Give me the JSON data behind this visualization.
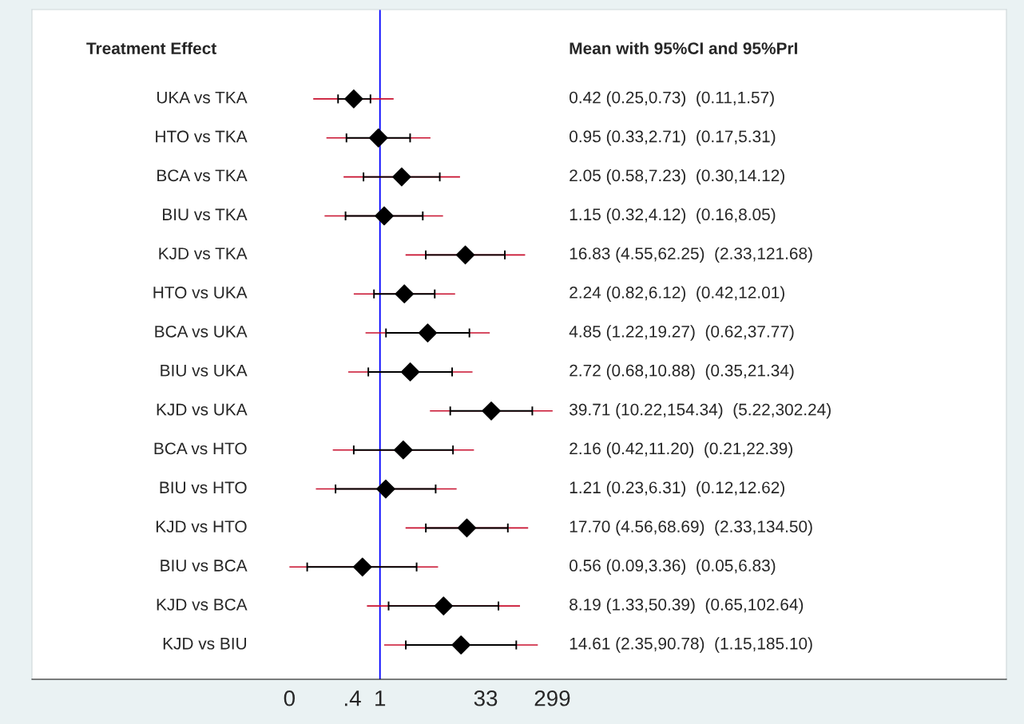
{
  "chart_data": {
    "type": "scatter",
    "orientation": "horizontal",
    "log": "x",
    "categories": [
      "UKA vs TKA",
      "HTO vs TKA",
      "BCA vs TKA",
      "BIU vs TKA",
      "KJD vs TKA",
      "HTO vs UKA",
      "BCA vs UKA",
      "BIU vs UKA",
      "KJD vs UKA",
      "BCA vs HTO",
      "BIU vs HTO",
      "KJD vs HTO",
      "BIU vs BCA",
      "KJD vs BCA",
      "KJD vs BIU"
    ],
    "series": [
      {
        "color": "#000000",
        "marker": "diamond",
        "values": [
          0.42,
          0.95,
          2.05,
          1.15,
          16.83,
          2.24,
          4.85,
          2.72,
          39.71,
          2.16,
          1.21,
          17.7,
          0.56,
          8.19,
          14.61
        ],
        "errors": [
          [
            0.25,
            0.73
          ],
          [
            0.33,
            2.71
          ],
          [
            0.58,
            7.23
          ],
          [
            0.32,
            4.12
          ],
          [
            4.55,
            62.25
          ],
          [
            0.82,
            6.12
          ],
          [
            1.22,
            19.27
          ],
          [
            0.68,
            10.88
          ],
          [
            10.22,
            154.34
          ],
          [
            0.42,
            11.2
          ],
          [
            0.23,
            6.31
          ],
          [
            4.56,
            68.69
          ],
          [
            0.09,
            3.36
          ],
          [
            1.33,
            50.39
          ],
          [
            2.35,
            90.78
          ]
        ],
        "lower": [
          0.11,
          0.17,
          0.3,
          0.16,
          2.33,
          0.42,
          0.62,
          0.35,
          5.22,
          0.21,
          0.12,
          2.33,
          0.05,
          0.65,
          1.15
        ],
        "upper": [
          1.57,
          5.31,
          14.12,
          8.05,
          121.68,
          12.01,
          37.77,
          21.34,
          302.24,
          22.39,
          12.62,
          134.5,
          6.83,
          102.64,
          185.1
        ]
      }
    ],
    "xlim": [
      1e-05,
      1000000000
    ],
    "xticks": [
      {
        "value": 0.05,
        "label": "0"
      },
      {
        "value": 0.4,
        "label": ".4"
      },
      1,
      33,
      299
    ],
    "ref_lines": [
      {
        "axis": "x",
        "value": 1,
        "color": "#0000ff"
      }
    ],
    "annotations": [
      "Treatment Effect",
      "Mean with 95%CI and 95%PrI",
      "0.42 (0.25,0.73)  (0.11,1.57)",
      "0.95 (0.33,2.71)  (0.17,5.31)",
      "2.05 (0.58,7.23)  (0.30,14.12)",
      "1.15 (0.32,4.12)  (0.16,8.05)",
      "16.83 (4.55,62.25)  (2.33,121.68)",
      "2.24 (0.82,6.12)  (0.42,12.01)",
      "4.85 (1.22,19.27)  (0.62,37.77)",
      "2.72 (0.68,10.88)  (0.35,21.34)",
      "39.71 (10.22,154.34)  (5.22,302.24)",
      "2.16 (0.42,11.20)  (0.21,22.39)",
      "1.21 (0.23,6.31)  (0.12,12.62)",
      "17.70 (4.56,68.69)  (2.33,134.50)",
      "0.56 (0.09,3.36)  (0.05,6.83)",
      "8.19 (1.33,50.39)  (0.65,102.64)",
      "14.61 (2.35,90.78)  (1.15,185.10)"
    ],
    "grid": false,
    "legend": false
  }
}
